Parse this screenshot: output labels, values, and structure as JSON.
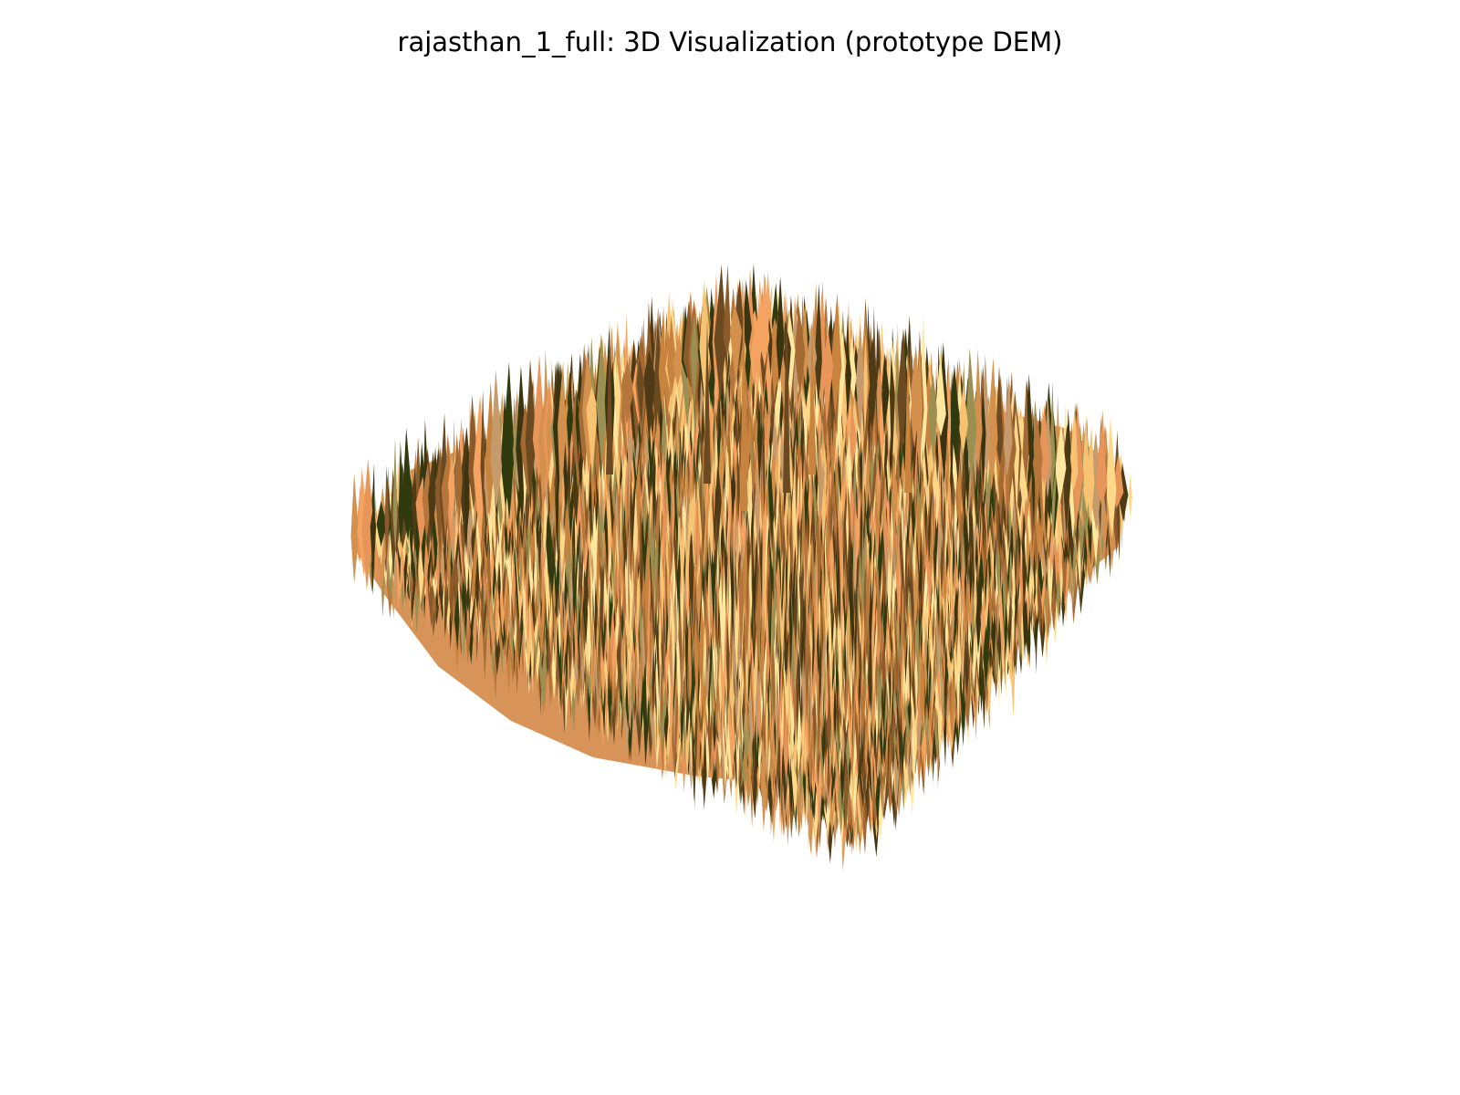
{
  "chart_data": {
    "type": "surface3d",
    "title": "rajasthan_1_full: 3D Visualization (prototype DEM)",
    "axes_visible": false,
    "grid": false,
    "legend": "none",
    "colormap": "terrain (gold-to-dark-brown)",
    "palette": [
      "#f4a460",
      "#e8955a",
      "#d4914e",
      "#c8833f",
      "#b5763c",
      "#f7c373",
      "#ffd88a",
      "#ffe7a0",
      "#a36b33",
      "#8a5a2b",
      "#6b4a22",
      "#4f3a16",
      "#3b3410",
      "#2f3a0e",
      "#9c8f52",
      "#c79a6b"
    ]
  }
}
